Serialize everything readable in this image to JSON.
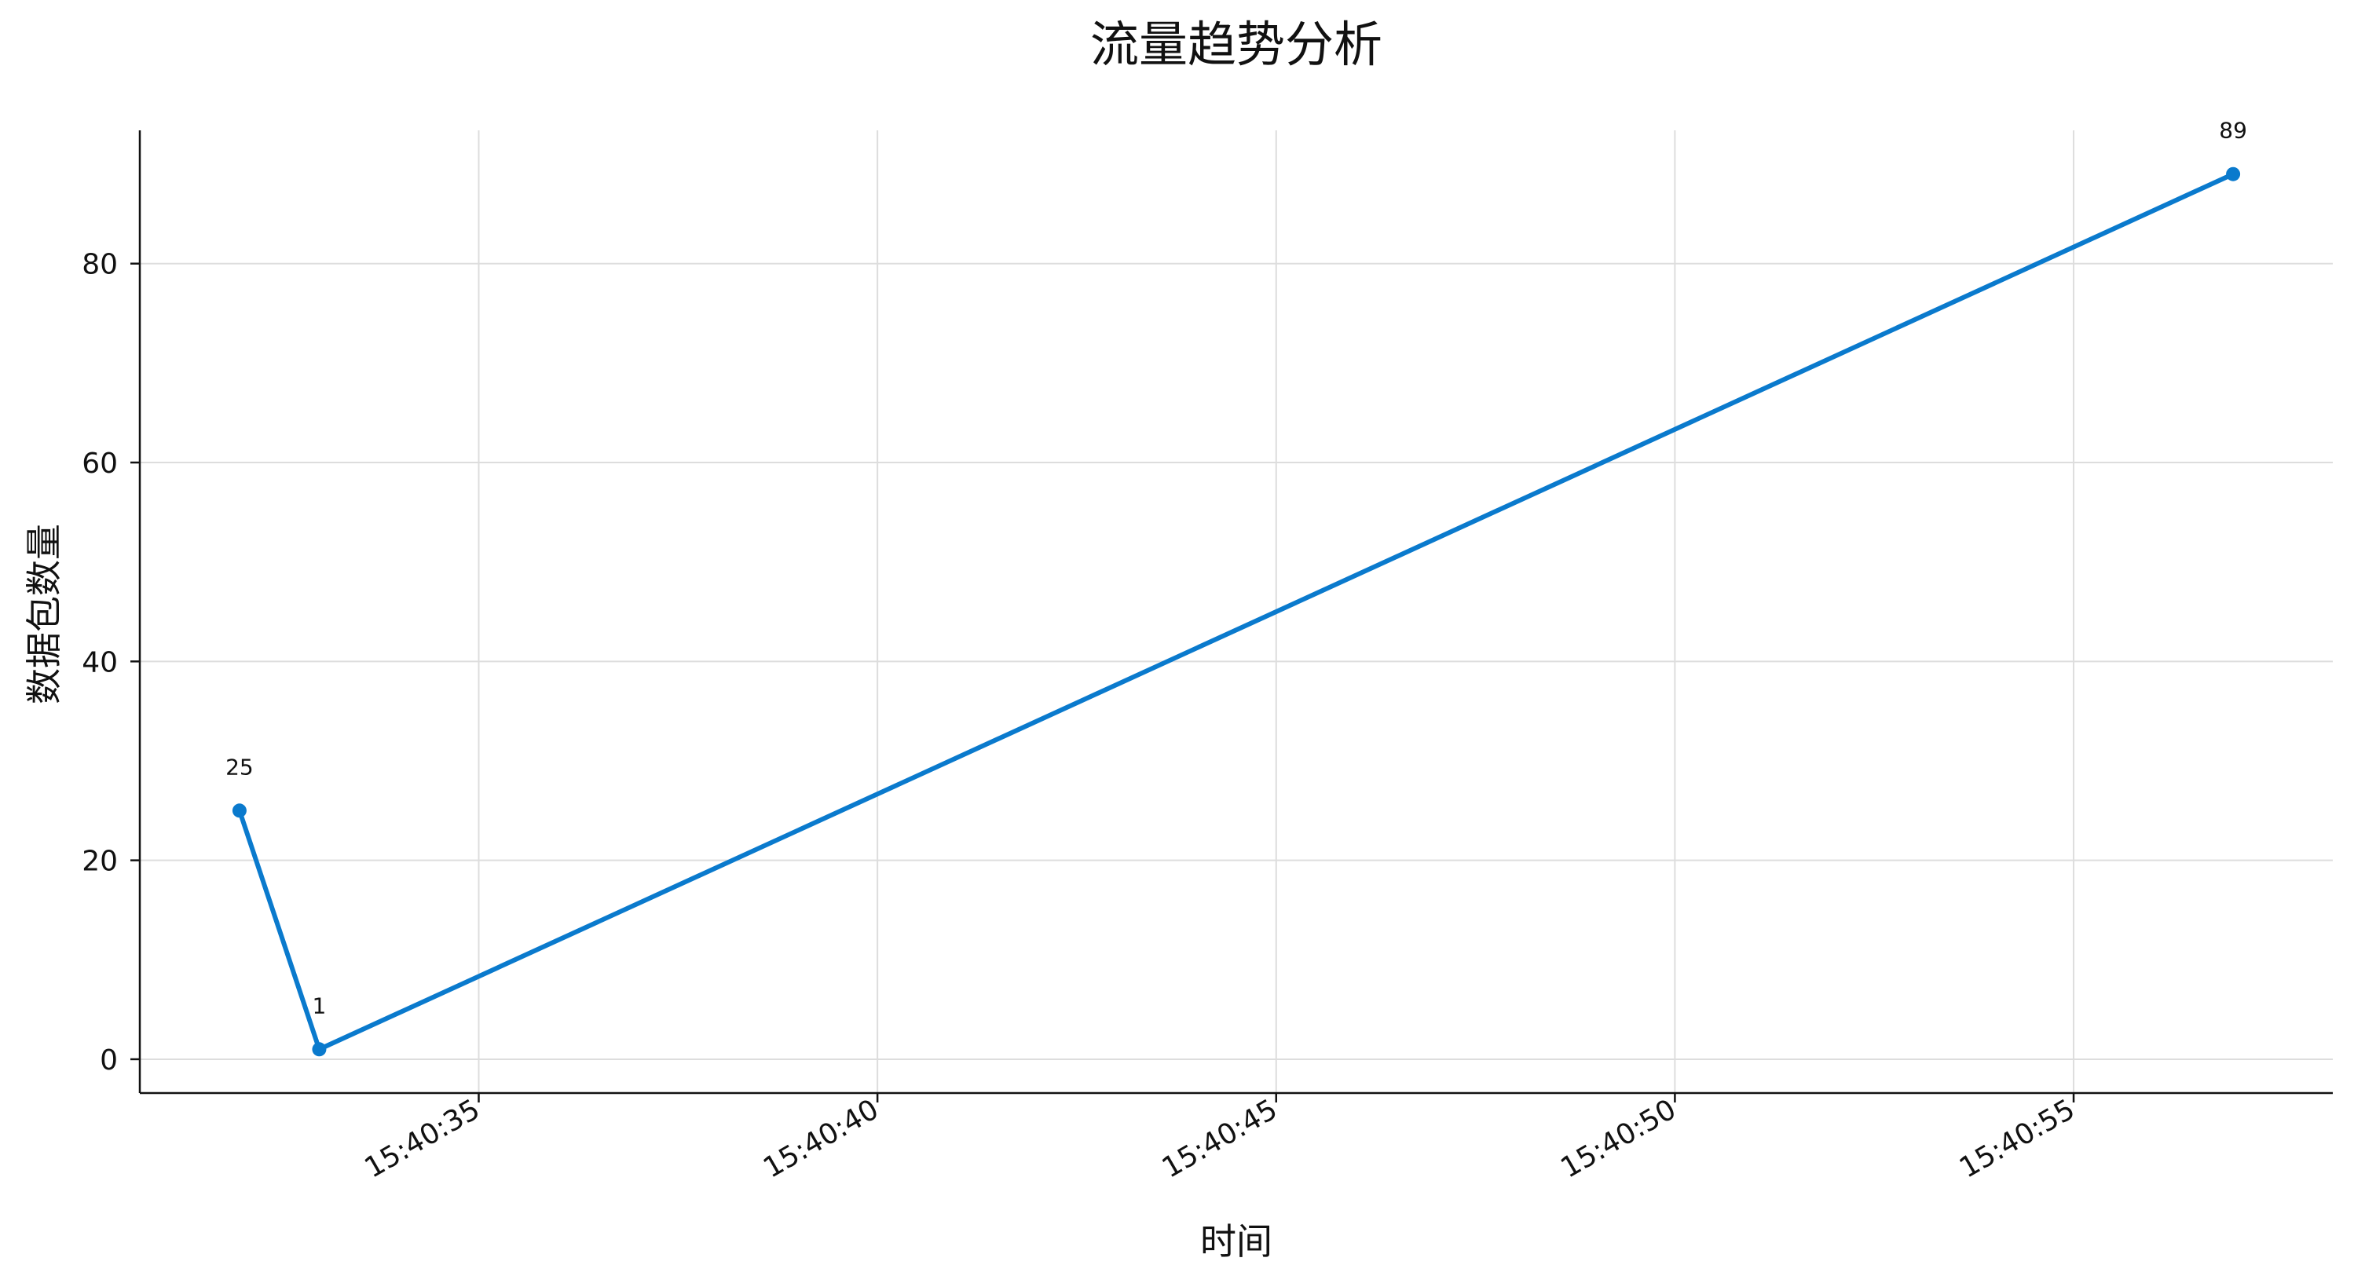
{
  "chart_data": {
    "type": "line",
    "title": "流量趋势分析",
    "xlabel": "时间",
    "ylabel": "数据包数量",
    "x": [
      "15:40:32",
      "15:40:33",
      "15:40:57"
    ],
    "series": [
      {
        "values": [
          25,
          1,
          89
        ],
        "color": "#0a7acd"
      }
    ],
    "data_labels": [
      "25",
      "1",
      "89"
    ],
    "x_ticks": [
      "15:40:35",
      "15:40:40",
      "15:40:45",
      "15:40:50",
      "15:40:55"
    ],
    "y_ticks": [
      0,
      20,
      40,
      60,
      80
    ],
    "xlim": [
      "15:40:30.75",
      "15:40:58.25"
    ],
    "ylim": [
      -3.4,
      93.4
    ],
    "grid": true,
    "legend": "none",
    "spines": "left-bottom"
  }
}
